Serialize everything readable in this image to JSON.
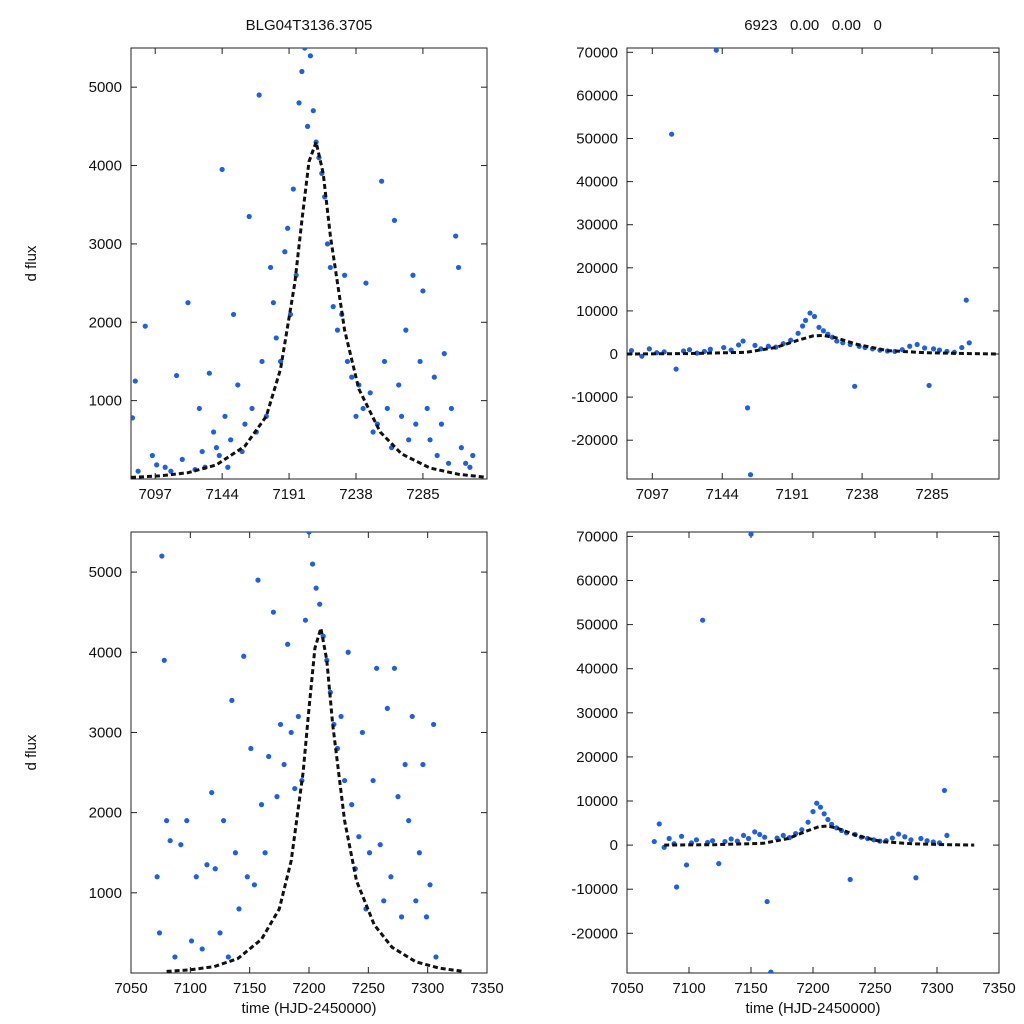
{
  "chart_data": [
    {
      "type": "scatter",
      "title": "BLG04T3136.3705",
      "xlabel": "",
      "ylabel": "d flux",
      "xlim": [
        7080,
        7330
      ],
      "ylim": [
        0,
        5500
      ],
      "xticks": [
        7097,
        7144,
        7191,
        7238,
        7285
      ],
      "xtick_labels": [
        "7097",
        "7144",
        "7191",
        "7238",
        "7285"
      ],
      "yticks": [
        1000,
        2000,
        3000,
        4000,
        5000
      ],
      "ytick_labels": [
        "1000",
        "2000",
        "3000",
        "4000",
        "5000"
      ],
      "series": [
        {
          "name": "model",
          "style": "dashed-line",
          "color": "#111111",
          "x": [
            7080,
            7100,
            7120,
            7140,
            7160,
            7175,
            7185,
            7195,
            7200,
            7205,
            7210,
            7215,
            7220,
            7230,
            7240,
            7255,
            7270,
            7290,
            7310,
            7330
          ],
          "y": [
            20,
            40,
            80,
            180,
            420,
            800,
            1400,
            2500,
            3300,
            4050,
            4300,
            3900,
            3100,
            1900,
            1150,
            600,
            320,
            140,
            60,
            20
          ]
        },
        {
          "name": "data",
          "style": "points",
          "color": "#1f5fe0",
          "x": [
            7081,
            7083,
            7085,
            7090,
            7095,
            7098,
            7104,
            7108,
            7112,
            7116,
            7120,
            7125,
            7128,
            7130,
            7132,
            7135,
            7138,
            7140,
            7142,
            7144,
            7146,
            7148,
            7150,
            7152,
            7155,
            7158,
            7160,
            7163,
            7165,
            7168,
            7170,
            7172,
            7175,
            7178,
            7180,
            7182,
            7185,
            7188,
            7190,
            7192,
            7194,
            7196,
            7198,
            7200,
            7202,
            7204,
            7206,
            7208,
            7210,
            7212,
            7214,
            7216,
            7218,
            7220,
            7222,
            7225,
            7228,
            7230,
            7232,
            7235,
            7238,
            7240,
            7243,
            7245,
            7248,
            7250,
            7253,
            7256,
            7258,
            7260,
            7263,
            7265,
            7268,
            7270,
            7273,
            7275,
            7278,
            7280,
            7283,
            7285,
            7288,
            7290,
            7293,
            7295,
            7298,
            7300,
            7303,
            7305,
            7308,
            7310,
            7312,
            7315,
            7318,
            7320
          ],
          "y": [
            780,
            1250,
            100,
            1950,
            300,
            180,
            150,
            100,
            1320,
            250,
            2250,
            120,
            900,
            350,
            150,
            1350,
            600,
            400,
            300,
            3950,
            800,
            150,
            500,
            2100,
            1200,
            350,
            700,
            3350,
            900,
            600,
            4900,
            1500,
            800,
            2700,
            2250,
            1800,
            1500,
            2900,
            3200,
            2100,
            3700,
            2600,
            4800,
            5200,
            5500,
            4500,
            5400,
            4700,
            4300,
            4100,
            3900,
            3600,
            3000,
            2700,
            2200,
            1900,
            2100,
            2600,
            1500,
            1300,
            800,
            1200,
            900,
            2500,
            1100,
            600,
            700,
            3800,
            1500,
            900,
            400,
            3300,
            1200,
            800,
            1900,
            500,
            2600,
            700,
            1500,
            2400,
            900,
            500,
            1300,
            300,
            700,
            1600,
            200,
            900,
            3100,
            2700,
            400,
            200,
            150,
            300
          ]
        }
      ]
    },
    {
      "type": "scatter",
      "title": "6923   0.00   0.00   0",
      "xlabel": "",
      "ylabel": "",
      "xlim": [
        7080,
        7330
      ],
      "ylim": [
        -29000,
        71000
      ],
      "xticks": [
        7097,
        7144,
        7191,
        7238,
        7285
      ],
      "xtick_labels": [
        "7097",
        "7144",
        "7191",
        "7238",
        "7285"
      ],
      "yticks": [
        -20000,
        -10000,
        0,
        10000,
        20000,
        30000,
        40000,
        50000,
        60000,
        70000
      ],
      "ytick_labels": [
        "-20000",
        "-10000",
        "0",
        "10000",
        "20000",
        "30000",
        "40000",
        "50000",
        "60000",
        "70000"
      ],
      "series": [
        {
          "name": "model",
          "style": "dashed-line",
          "color": "#111111",
          "x": [
            7080,
            7120,
            7160,
            7180,
            7195,
            7205,
            7212,
            7220,
            7235,
            7255,
            7280,
            7310,
            7330
          ],
          "y": [
            0,
            100,
            400,
            1500,
            3200,
            4200,
            4300,
            3800,
            2200,
            800,
            300,
            100,
            0
          ]
        },
        {
          "name": "data",
          "style": "points",
          "color": "#1f5fe0",
          "x": [
            7083,
            7090,
            7095,
            7100,
            7105,
            7110,
            7113,
            7118,
            7122,
            7127,
            7132,
            7136,
            7140,
            7145,
            7150,
            7155,
            7158,
            7161,
            7163,
            7166,
            7170,
            7175,
            7180,
            7185,
            7190,
            7195,
            7198,
            7200,
            7203,
            7206,
            7209,
            7212,
            7215,
            7218,
            7221,
            7225,
            7230,
            7233,
            7236,
            7240,
            7245,
            7250,
            7255,
            7260,
            7265,
            7270,
            7275,
            7280,
            7283,
            7286,
            7290,
            7295,
            7300,
            7305,
            7308,
            7310
          ],
          "y": [
            800,
            -500,
            1200,
            300,
            500,
            51000,
            -3500,
            700,
            1000,
            200,
            600,
            1100,
            70500,
            1500,
            900,
            2100,
            3000,
            -12500,
            -28000,
            2000,
            1200,
            1800,
            1600,
            2400,
            3200,
            4800,
            6500,
            7800,
            9500,
            8700,
            6200,
            5400,
            4600,
            3900,
            3000,
            2600,
            2200,
            -7500,
            1800,
            1500,
            1200,
            900,
            700,
            600,
            1000,
            1800,
            2200,
            1400,
            -7300,
            1200,
            900,
            600,
            400,
            1500,
            12500,
            2600
          ]
        }
      ]
    },
    {
      "type": "scatter",
      "title": "",
      "xlabel": "time (HJD-2450000)",
      "ylabel": "d flux",
      "xlim": [
        7050,
        7350
      ],
      "ylim": [
        0,
        5500
      ],
      "xticks": [
        7050,
        7100,
        7150,
        7200,
        7250,
        7300,
        7350
      ],
      "xtick_labels": [
        "7050",
        "7100",
        "7150",
        "7200",
        "7250",
        "7300",
        "7350"
      ],
      "yticks": [
        1000,
        2000,
        3000,
        4000,
        5000
      ],
      "ytick_labels": [
        "1000",
        "2000",
        "3000",
        "4000",
        "5000"
      ],
      "series": [
        {
          "name": "model",
          "style": "dashed-line",
          "color": "#111111",
          "x": [
            7080,
            7100,
            7120,
            7140,
            7160,
            7175,
            7185,
            7195,
            7200,
            7205,
            7210,
            7215,
            7220,
            7230,
            7240,
            7255,
            7270,
            7290,
            7310,
            7330
          ],
          "y": [
            20,
            40,
            80,
            180,
            420,
            800,
            1400,
            2500,
            3300,
            4050,
            4300,
            3900,
            3100,
            1900,
            1150,
            600,
            320,
            140,
            60,
            20
          ]
        },
        {
          "name": "data",
          "style": "points",
          "color": "#1f5fe0",
          "x": [
            7072,
            7074,
            7076,
            7078,
            7080,
            7083,
            7087,
            7092,
            7097,
            7101,
            7105,
            7110,
            7114,
            7118,
            7121,
            7125,
            7128,
            7132,
            7135,
            7138,
            7141,
            7145,
            7148,
            7151,
            7154,
            7157,
            7160,
            7163,
            7166,
            7170,
            7173,
            7176,
            7179,
            7182,
            7185,
            7188,
            7191,
            7194,
            7197,
            7200,
            7203,
            7206,
            7209,
            7212,
            7215,
            7218,
            7221,
            7224,
            7227,
            7230,
            7233,
            7236,
            7239,
            7242,
            7245,
            7248,
            7251,
            7254,
            7257,
            7260,
            7263,
            7266,
            7269,
            7272,
            7275,
            7278,
            7281,
            7284,
            7287,
            7290,
            7293,
            7296,
            7299,
            7302,
            7305,
            7307
          ],
          "y": [
            1200,
            500,
            5200,
            3900,
            1900,
            1650,
            200,
            1600,
            1900,
            400,
            1200,
            300,
            1350,
            2250,
            1300,
            500,
            1900,
            200,
            3400,
            1500,
            800,
            3950,
            1200,
            2800,
            1100,
            4900,
            2100,
            1500,
            2700,
            4500,
            2200,
            3100,
            2600,
            4100,
            3000,
            2300,
            3200,
            2400,
            4400,
            5500,
            5100,
            4800,
            4600,
            4200,
            3900,
            3500,
            3100,
            2800,
            3200,
            2400,
            4000,
            2100,
            1300,
            1700,
            3000,
            800,
            1500,
            2400,
            3800,
            1600,
            900,
            3300,
            1200,
            3800,
            2200,
            700,
            2600,
            1900,
            3200,
            900,
            1500,
            2600,
            700,
            1100,
            3100,
            200
          ]
        }
      ]
    },
    {
      "type": "scatter",
      "title": "",
      "xlabel": "time (HJD-2450000)",
      "ylabel": "",
      "xlim": [
        7050,
        7350
      ],
      "ylim": [
        -29000,
        71000
      ],
      "xticks": [
        7050,
        7100,
        7150,
        7200,
        7250,
        7300,
        7350
      ],
      "xtick_labels": [
        "7050",
        "7100",
        "7150",
        "7200",
        "7250",
        "7300",
        "7350"
      ],
      "yticks": [
        -20000,
        -10000,
        0,
        10000,
        20000,
        30000,
        40000,
        50000,
        60000,
        70000
      ],
      "ytick_labels": [
        "-20000",
        "-10000",
        "0",
        "10000",
        "20000",
        "30000",
        "40000",
        "50000",
        "60000",
        "70000"
      ],
      "series": [
        {
          "name": "model",
          "style": "dashed-line",
          "color": "#111111",
          "x": [
            7080,
            7120,
            7160,
            7180,
            7195,
            7205,
            7212,
            7220,
            7235,
            7255,
            7280,
            7310,
            7330
          ],
          "y": [
            0,
            100,
            400,
            1500,
            3200,
            4200,
            4300,
            3800,
            2200,
            800,
            300,
            100,
            0
          ]
        },
        {
          "name": "data",
          "style": "points",
          "color": "#1f5fe0",
          "x": [
            7072,
            7076,
            7080,
            7084,
            7088,
            7090,
            7094,
            7098,
            7102,
            7106,
            7111,
            7115,
            7119,
            7124,
            7129,
            7134,
            7139,
            7144,
            7148,
            7150,
            7153,
            7157,
            7161,
            7163,
            7166,
            7171,
            7176,
            7181,
            7186,
            7191,
            7196,
            7200,
            7203,
            7206,
            7209,
            7212,
            7215,
            7219,
            7223,
            7227,
            7230,
            7234,
            7239,
            7244,
            7249,
            7254,
            7259,
            7264,
            7269,
            7274,
            7279,
            7283,
            7287,
            7292,
            7297,
            7302,
            7306,
            7308
          ],
          "y": [
            800,
            4800,
            -500,
            1500,
            300,
            -9500,
            2000,
            -4500,
            500,
            1200,
            51000,
            600,
            1000,
            -4200,
            800,
            1400,
            900,
            2200,
            1500,
            70500,
            3000,
            2400,
            1800,
            -12800,
            -28800,
            1600,
            2200,
            1700,
            2600,
            3500,
            5200,
            7600,
            9500,
            8600,
            7100,
            5800,
            4700,
            3900,
            3300,
            2800,
            -7800,
            2400,
            1800,
            1500,
            1200,
            900,
            1000,
            1600,
            2500,
            1900,
            1200,
            -7400,
            1500,
            1000,
            700,
            500,
            12400,
            2200
          ]
        }
      ]
    }
  ]
}
